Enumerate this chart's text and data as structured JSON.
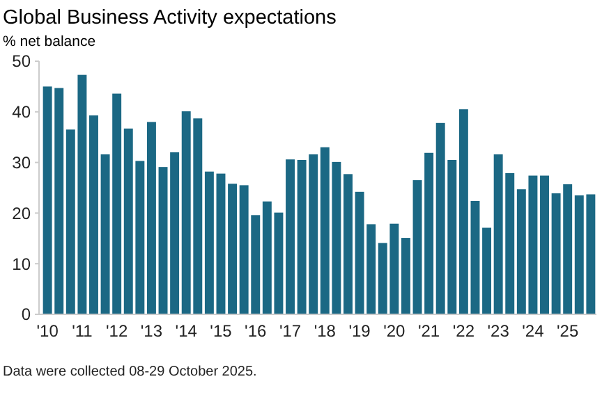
{
  "chart_data": {
    "type": "bar",
    "title": "Global Business Activity expectations",
    "ylabel": "% net balance",
    "categories": [
      "'10",
      null,
      null,
      "'11",
      null,
      null,
      "'12",
      null,
      null,
      "'13",
      null,
      null,
      "'14",
      null,
      null,
      "'15",
      null,
      null,
      "'16",
      null,
      null,
      "'17",
      null,
      null,
      "'18",
      null,
      null,
      "'19",
      null,
      null,
      "'20",
      null,
      null,
      "'21",
      null,
      null,
      "'22",
      null,
      null,
      "'23",
      null,
      null,
      "'24",
      null,
      null,
      "'25",
      null,
      null
    ],
    "values": [
      45,
      44.7,
      36.5,
      47.3,
      39.3,
      31.6,
      43.6,
      36.7,
      30.3,
      38,
      29.1,
      32,
      40.1,
      38.7,
      28.2,
      27.8,
      25.8,
      25.5,
      19.6,
      22.3,
      20.1,
      30.6,
      30.5,
      31.6,
      33,
      30.1,
      27.7,
      24.2,
      17.8,
      14.1,
      17.9,
      15.1,
      26.5,
      31.9,
      37.8,
      30.5,
      40.5,
      22.4,
      17.1,
      31.6,
      27.9,
      24.7,
      27.4,
      27.4,
      23.9,
      25.7,
      23.5,
      23.7
    ],
    "color": "#1b6884",
    "ylim": [
      0,
      50
    ],
    "yticks": [
      0,
      10,
      20,
      30,
      40,
      50
    ],
    "grid": false,
    "annotations": [
      "Data were collected 08-29 October 2025."
    ]
  }
}
